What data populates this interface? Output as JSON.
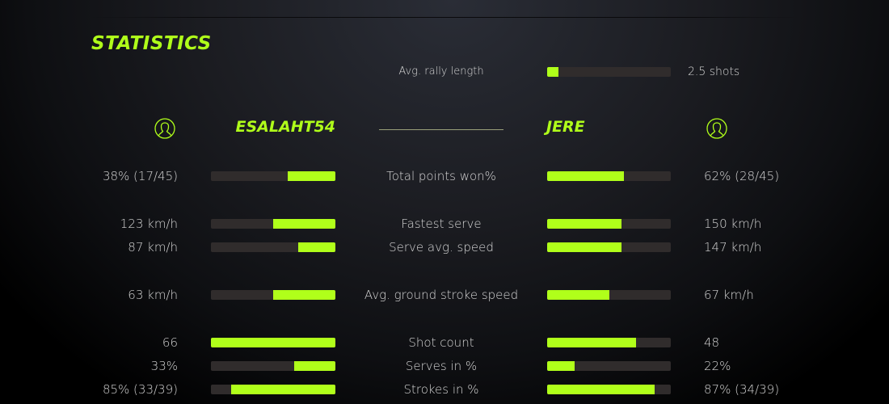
{
  "title": "STATISTICS",
  "accent_color": "#b0ff1a",
  "rally": {
    "label": "Avg. rally length",
    "value": "2.5 shots",
    "fill": 0.09
  },
  "players": {
    "left": {
      "name": "ESALAHT54",
      "icon": "user-avatar-icon"
    },
    "right": {
      "name": "JERE",
      "icon": "user-avatar-icon"
    }
  },
  "stats": [
    {
      "label": "Total points won%",
      "left": "38% (17/45)",
      "right": "62% (28/45)",
      "left_fill": 0.38,
      "right_fill": 0.62
    },
    {
      "label": "Fastest serve",
      "left": "123 km/h",
      "right": "150 km/h",
      "left_fill": 0.5,
      "right_fill": 0.6
    },
    {
      "label": "Serve avg. speed",
      "left": "87 km/h",
      "right": "147 km/h",
      "left_fill": 0.3,
      "right_fill": 0.6
    },
    {
      "label": "Avg. ground stroke speed",
      "left": "63 km/h",
      "right": "67 km/h",
      "left_fill": 0.5,
      "right_fill": 0.5
    },
    {
      "label": "Shot count",
      "left": "66",
      "right": "48",
      "left_fill": 1.0,
      "right_fill": 0.72
    },
    {
      "label": "Serves in %",
      "left": "33%",
      "right": "22%",
      "left_fill": 0.33,
      "right_fill": 0.22
    },
    {
      "label": "Strokes in %",
      "left": "85% (33/39)",
      "right": "87% (34/39)",
      "left_fill": 0.84,
      "right_fill": 0.87
    }
  ]
}
